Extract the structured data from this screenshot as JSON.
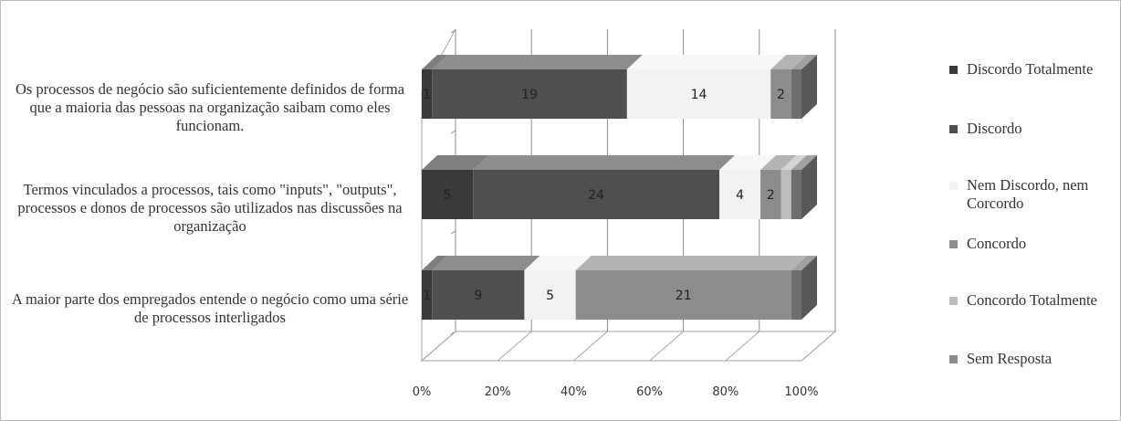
{
  "chart_data": {
    "type": "bar",
    "orientation": "horizontal",
    "stacked": "percent",
    "three_d": true,
    "categories": [
      "Os processos de negócio são suficientemente definidos de forma que a maioria das pessoas na organização saibam como eles funcionam.",
      "Termos vinculados a processos, tais como \"inputs\", \"outputs\", processos e donos de processos são utilizados nas discussões na organização",
      "A maior parte dos empregados entende o negócio como uma série de processos interligados"
    ],
    "series": [
      {
        "name": "Discordo Totalmente",
        "values": [
          1,
          5,
          1
        ],
        "color": "#3a3a3a"
      },
      {
        "name": "Discordo",
        "values": [
          19,
          24,
          9
        ],
        "color": "#4f4f4f"
      },
      {
        "name": "Nem Discordo, nem Corcordo",
        "values": [
          14,
          4,
          5
        ],
        "color": "#f2f2f2"
      },
      {
        "name": "Concordo",
        "values": [
          2,
          2,
          21
        ],
        "color": "#8c8c8c"
      },
      {
        "name": "Concordo Totalmente",
        "values": [
          0,
          1,
          0
        ],
        "color": "#bdbdbd"
      },
      {
        "name": "Sem Resposta",
        "values": [
          1,
          1,
          1
        ],
        "color": "#6e6e6e"
      }
    ],
    "data_labels": [
      [
        "1",
        "19",
        "14",
        "2",
        "",
        ""
      ],
      [
        "5",
        "24",
        "4",
        "2",
        "",
        ""
      ],
      [
        "1",
        "9",
        "5",
        "21",
        "",
        ""
      ]
    ],
    "xticks": [
      "0%",
      "20%",
      "40%",
      "60%",
      "80%",
      "100%"
    ],
    "xlim": [
      0,
      100
    ],
    "grid": true,
    "legend_position": "right"
  }
}
